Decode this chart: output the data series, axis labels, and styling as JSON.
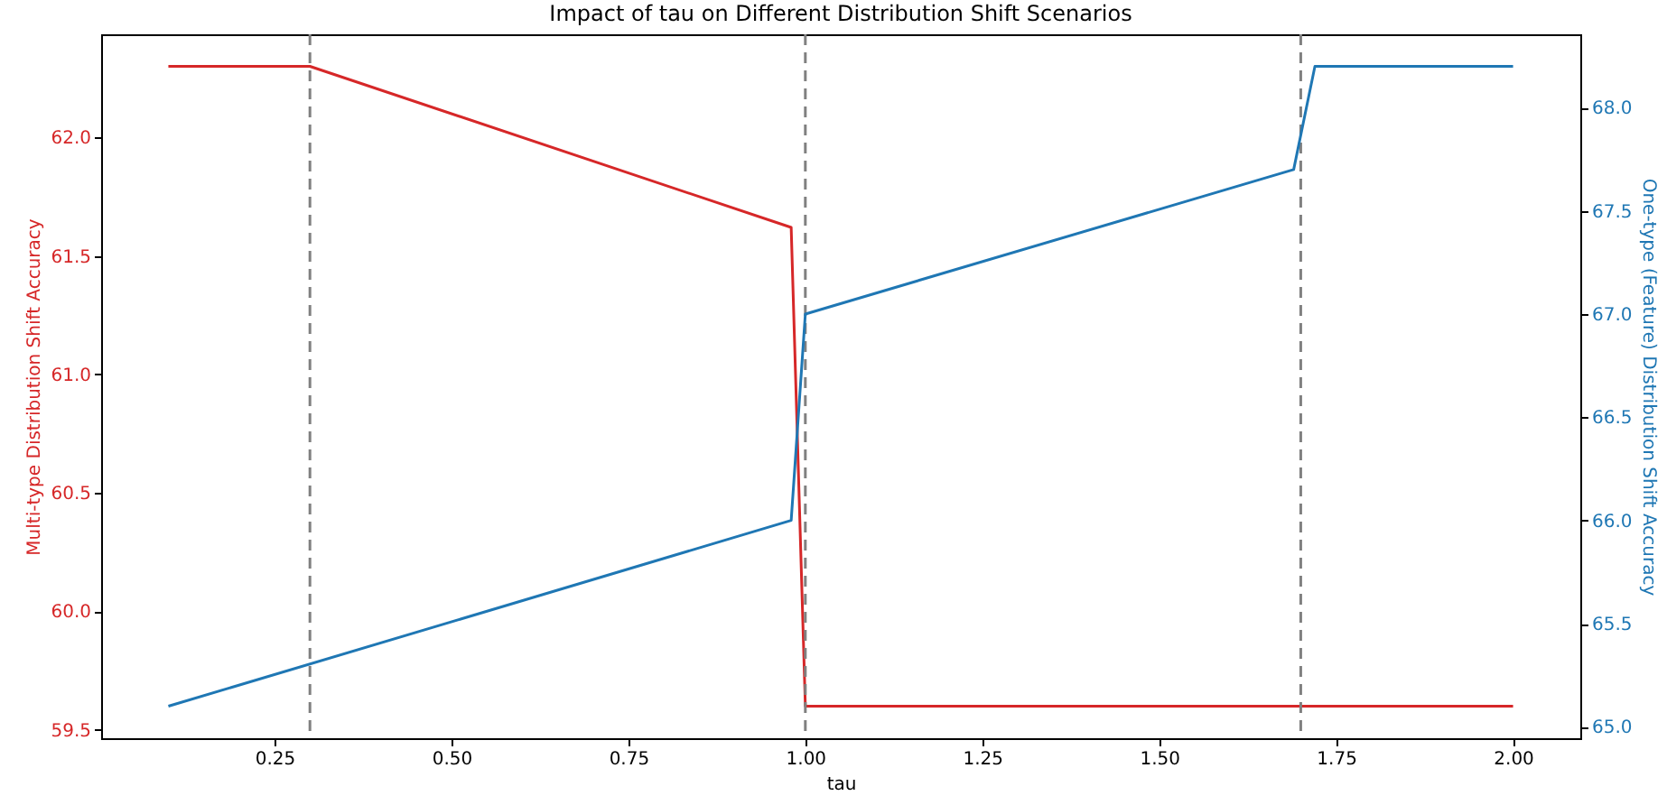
{
  "chart_data": {
    "type": "line",
    "title": "Impact of tau on Different Distribution Shift Scenarios",
    "xlabel": "tau",
    "ylabel": "Multi-type Distribution Shift Accuracy",
    "y2label": "One-type (Feature) Distribution Shift Accuracy",
    "series": [
      {
        "color": "#d62728",
        "x": [
          0.1,
          0.3,
          0.98,
          1.0,
          2.0
        ],
        "values": [
          62.3,
          62.3,
          61.62,
          59.6,
          59.6
        ]
      },
      {
        "color": "#1f77b4",
        "axis": "y2",
        "x": [
          0.1,
          0.98,
          1.0,
          1.69,
          1.72,
          2.0
        ],
        "values": [
          65.1,
          66.0,
          67.0,
          67.7,
          68.2,
          68.2
        ]
      }
    ],
    "xlim": [
      0.005,
      2.095
    ],
    "xticks": [
      0.25,
      {
        "value": 0.5,
        "label": "0.50"
      },
      0.75,
      {
        "value": 1.0,
        "label": "1.00"
      },
      1.25,
      {
        "value": 1.5,
        "label": "1.50"
      },
      1.75,
      {
        "value": 2.0,
        "label": "2.00"
      }
    ],
    "ylim": [
      59.465,
      62.435
    ],
    "yticks": [
      59.5,
      {
        "value": 60,
        "label": "60.0"
      },
      60.5,
      {
        "value": 61,
        "label": "61.0"
      },
      61.5,
      {
        "value": 62,
        "label": "62.0"
      }
    ],
    "y2lim": [
      64.945,
      68.355
    ],
    "y2ticks": [
      {
        "value": 65,
        "label": "65.0"
      },
      65.5,
      {
        "value": 66,
        "label": "66.0"
      },
      66.5,
      {
        "value": 67,
        "label": "67.0"
      },
      67.5,
      {
        "value": 68,
        "label": "68.0"
      }
    ],
    "ref_lines": [
      {
        "axis": "x",
        "value": 0.3,
        "color": "#808080",
        "line_style": "dashed"
      },
      {
        "axis": "x",
        "value": 1.0,
        "color": "#808080",
        "line_style": "dashed"
      },
      {
        "axis": "x",
        "value": 1.7,
        "color": "#808080",
        "line_style": "dashed"
      }
    ],
    "grid": false,
    "marker": "none",
    "line_style": "solid"
  }
}
